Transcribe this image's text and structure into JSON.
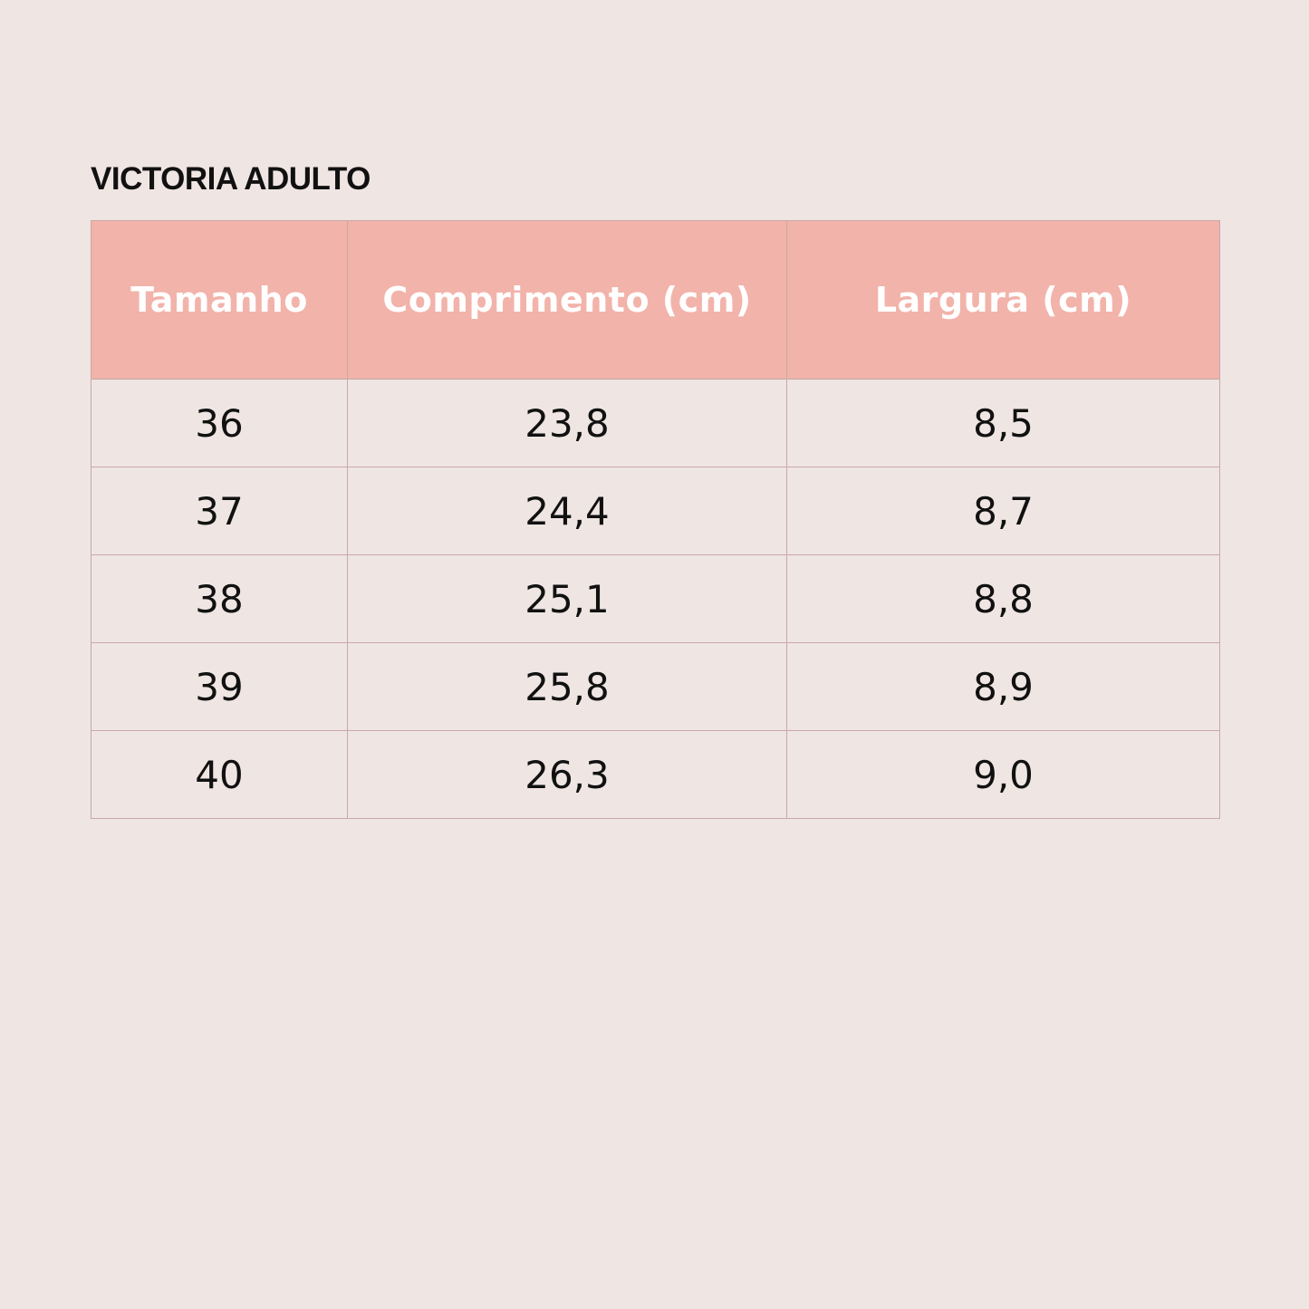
{
  "title": "VICTORIA ADULTO",
  "table": {
    "headers": [
      "Tamanho",
      "Comprimento (cm)",
      "Largura (cm)"
    ],
    "rows": [
      [
        "36",
        "23,8",
        "8,5"
      ],
      [
        "37",
        "24,4",
        "8,7"
      ],
      [
        "38",
        "25,1",
        "8,8"
      ],
      [
        "39",
        "25,8",
        "8,9"
      ],
      [
        "40",
        "26,3",
        "9,0"
      ]
    ]
  },
  "colors": {
    "background": "#efe5e3",
    "header": "#f2b3aa",
    "border": "#c7aaa6"
  }
}
